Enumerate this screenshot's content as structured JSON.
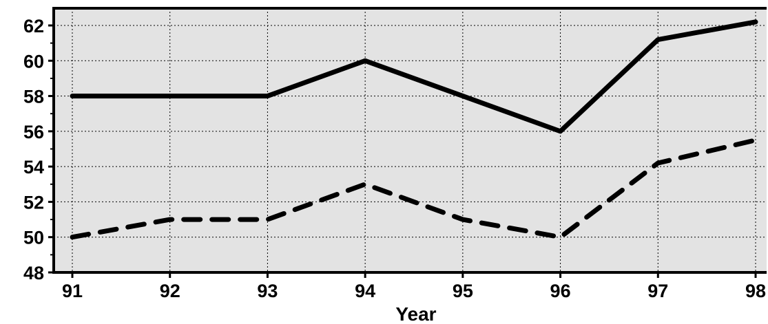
{
  "chart_data": {
    "type": "line",
    "title": "",
    "xlabel": "Year",
    "ylabel": "",
    "x": [
      "91",
      "92",
      "93",
      "94",
      "95",
      "96",
      "97",
      "98"
    ],
    "ylim": [
      48,
      62.6
    ],
    "yticks": [
      48,
      50,
      52,
      54,
      56,
      58,
      60,
      62
    ],
    "grid": true,
    "legend": "none",
    "series": [
      {
        "line_style": "solid",
        "color": "#000000",
        "values": [
          58,
          58,
          58,
          60,
          58,
          56,
          61.2,
          62.2
        ]
      },
      {
        "line_style": "dashed",
        "color": "#000000",
        "values": [
          50,
          51,
          51,
          53,
          51,
          50,
          54.2,
          55.5
        ]
      }
    ],
    "colors": {
      "plot_background": "#e3e3e3",
      "grid": "#000000",
      "axis": "#000000"
    }
  }
}
